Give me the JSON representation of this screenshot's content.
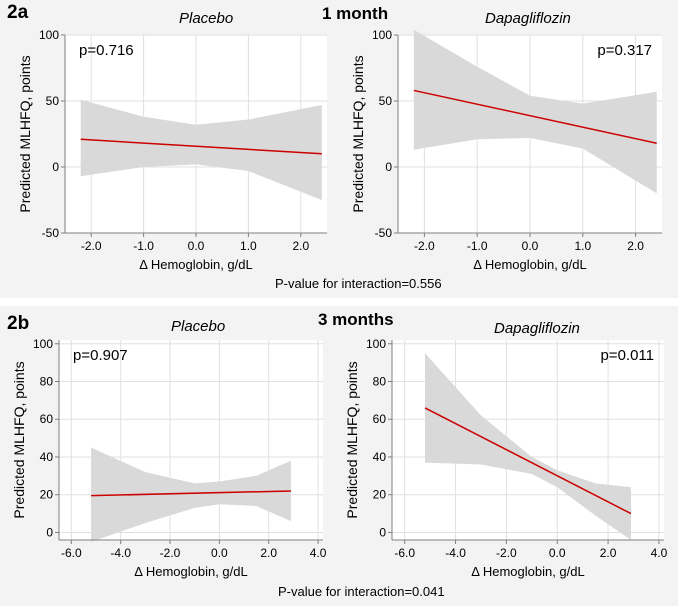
{
  "colors": {
    "line": "#cc0000",
    "band": "#d9d9d9",
    "axis": "#7f7f7f",
    "grid": "#e0e0e0",
    "background": "#ffffff",
    "panel": "#f3f3f3"
  },
  "panels": [
    {
      "label": "2a",
      "time": "1 month",
      "interaction": "P-value for interaction=0.556"
    },
    {
      "label": "2b",
      "time": "3 months",
      "interaction": "P-value for interaction=0.041"
    }
  ],
  "chart_data": [
    {
      "type": "line",
      "title": "Placebo",
      "pvalue": "p=0.716",
      "pvalue_position": "top-left",
      "xlabel": "Δ Hemoglobin, g/dL",
      "ylabel": "Predicted MLHFQ, points",
      "xlim": [
        -2.5,
        2.5
      ],
      "ylim": [
        -50,
        100
      ],
      "xticks": [
        -2.0,
        -1.0,
        0.0,
        1.0,
        2.0
      ],
      "xtick_labels": [
        "-2.0",
        "-1.0",
        "0.0",
        "1.0",
        "2.0"
      ],
      "yticks": [
        -50,
        0,
        50,
        100
      ],
      "ytick_labels": [
        "-50",
        "0",
        "50",
        "100"
      ],
      "grid": true,
      "line": {
        "x": [
          -2.2,
          2.4
        ],
        "y": [
          21,
          10
        ]
      },
      "band": {
        "x": [
          -2.2,
          -1.0,
          0.0,
          1.0,
          2.4
        ],
        "upper": [
          51,
          38,
          32,
          36,
          47
        ],
        "lower": [
          -7,
          0,
          2,
          -3,
          -25
        ]
      }
    },
    {
      "type": "line",
      "title": "Dapagliflozin",
      "pvalue": "p=0.317",
      "pvalue_position": "top-right",
      "xlabel": "Δ Hemoglobin, g/dL",
      "ylabel": "Predicted MLHFQ, points",
      "xlim": [
        -2.5,
        2.5
      ],
      "ylim": [
        -50,
        100
      ],
      "xticks": [
        -2.0,
        -1.0,
        0.0,
        1.0,
        2.0
      ],
      "xtick_labels": [
        "-2.0",
        "-1.0",
        "0.0",
        "1.0",
        "2.0"
      ],
      "yticks": [
        -50,
        0,
        50,
        100
      ],
      "ytick_labels": [
        "-50",
        "0",
        "50",
        "100"
      ],
      "grid": true,
      "line": {
        "x": [
          -2.2,
          2.4
        ],
        "y": [
          58,
          18
        ]
      },
      "band": {
        "x": [
          -2.2,
          -1.0,
          0.0,
          1.0,
          2.4
        ],
        "upper": [
          104,
          76,
          54,
          48,
          57
        ],
        "lower": [
          13,
          21,
          22,
          14,
          -20
        ]
      }
    },
    {
      "type": "line",
      "title": "Placebo",
      "pvalue": "p=0.907",
      "pvalue_position": "top-left",
      "xlabel": "Δ Hemoglobin, g/dL",
      "ylabel": "Predicted MLHFQ, points",
      "xlim": [
        -6.5,
        4.2
      ],
      "ylim": [
        -4,
        102
      ],
      "xticks": [
        -6.0,
        -4.0,
        -2.0,
        0.0,
        2.0,
        4.0
      ],
      "xtick_labels": [
        "-6.0",
        "-4.0",
        "-2.0",
        "0.0",
        "2.0",
        "4.0"
      ],
      "yticks": [
        0,
        20,
        40,
        60,
        80,
        100
      ],
      "ytick_labels": [
        "0",
        "20",
        "40",
        "60",
        "80",
        "100"
      ],
      "grid": true,
      "line": {
        "x": [
          -5.2,
          2.9
        ],
        "y": [
          19.5,
          22
        ]
      },
      "band": {
        "x": [
          -5.2,
          -3.0,
          -1.0,
          0.0,
          1.5,
          2.9
        ],
        "upper": [
          45,
          32,
          26,
          27,
          30,
          38
        ],
        "lower": [
          -5,
          5,
          13,
          15,
          14,
          6
        ]
      }
    },
    {
      "type": "line",
      "title": "Dapagliflozin",
      "pvalue": "p=0.011",
      "pvalue_position": "top-right",
      "xlabel": "Δ Hemoglobin, g/dL",
      "ylabel": "Predicted MLHFQ, points",
      "xlim": [
        -6.5,
        4.2
      ],
      "ylim": [
        -4,
        102
      ],
      "xticks": [
        -6.0,
        -4.0,
        -2.0,
        0.0,
        2.0,
        4.0
      ],
      "xtick_labels": [
        "-6.0",
        "-4.0",
        "-2.0",
        "0.0",
        "2.0",
        "4.0"
      ],
      "yticks": [
        0,
        20,
        40,
        60,
        80,
        100
      ],
      "ytick_labels": [
        "0",
        "20",
        "40",
        "60",
        "80",
        "100"
      ],
      "grid": true,
      "line": {
        "x": [
          -5.2,
          2.9
        ],
        "y": [
          66,
          10
        ]
      },
      "band": {
        "x": [
          -5.2,
          -3.0,
          -1.0,
          0.0,
          1.5,
          2.9
        ],
        "upper": [
          95,
          62,
          40,
          33,
          26,
          24
        ],
        "lower": [
          37,
          36,
          31,
          24,
          9,
          -4
        ]
      }
    }
  ]
}
